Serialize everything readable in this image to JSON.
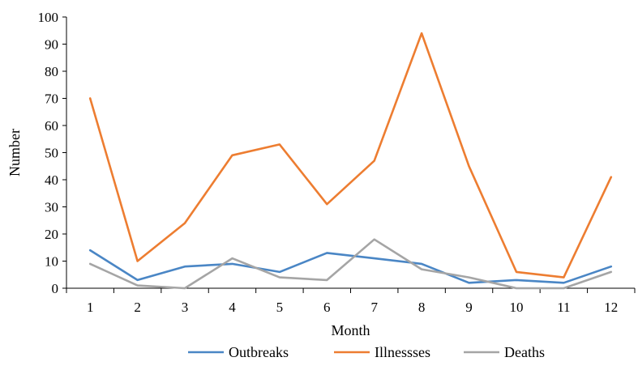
{
  "chart_data": {
    "type": "line",
    "xlabel": "Month",
    "ylabel": "Number",
    "ylim": [
      0,
      100
    ],
    "yticks": [
      0,
      10,
      20,
      30,
      40,
      50,
      60,
      70,
      80,
      90,
      100
    ],
    "categories": [
      "1",
      "2",
      "3",
      "4",
      "5",
      "6",
      "7",
      "8",
      "9",
      "10",
      "11",
      "12"
    ],
    "grid": false,
    "legend_position": "bottom",
    "series": [
      {
        "name": "Outbreaks",
        "color": "#4a86c5",
        "values": [
          14,
          3,
          8,
          9,
          6,
          13,
          11,
          9,
          2,
          3,
          2,
          8
        ]
      },
      {
        "name": "Illnessses",
        "color": "#ed7d31",
        "values": [
          70,
          10,
          24,
          49,
          53,
          31,
          47,
          94,
          45,
          6,
          4,
          41
        ]
      },
      {
        "name": "Deaths",
        "color": "#a5a5a5",
        "values": [
          9,
          1,
          0,
          11,
          4,
          3,
          18,
          7,
          4,
          0,
          0,
          6
        ]
      }
    ]
  }
}
